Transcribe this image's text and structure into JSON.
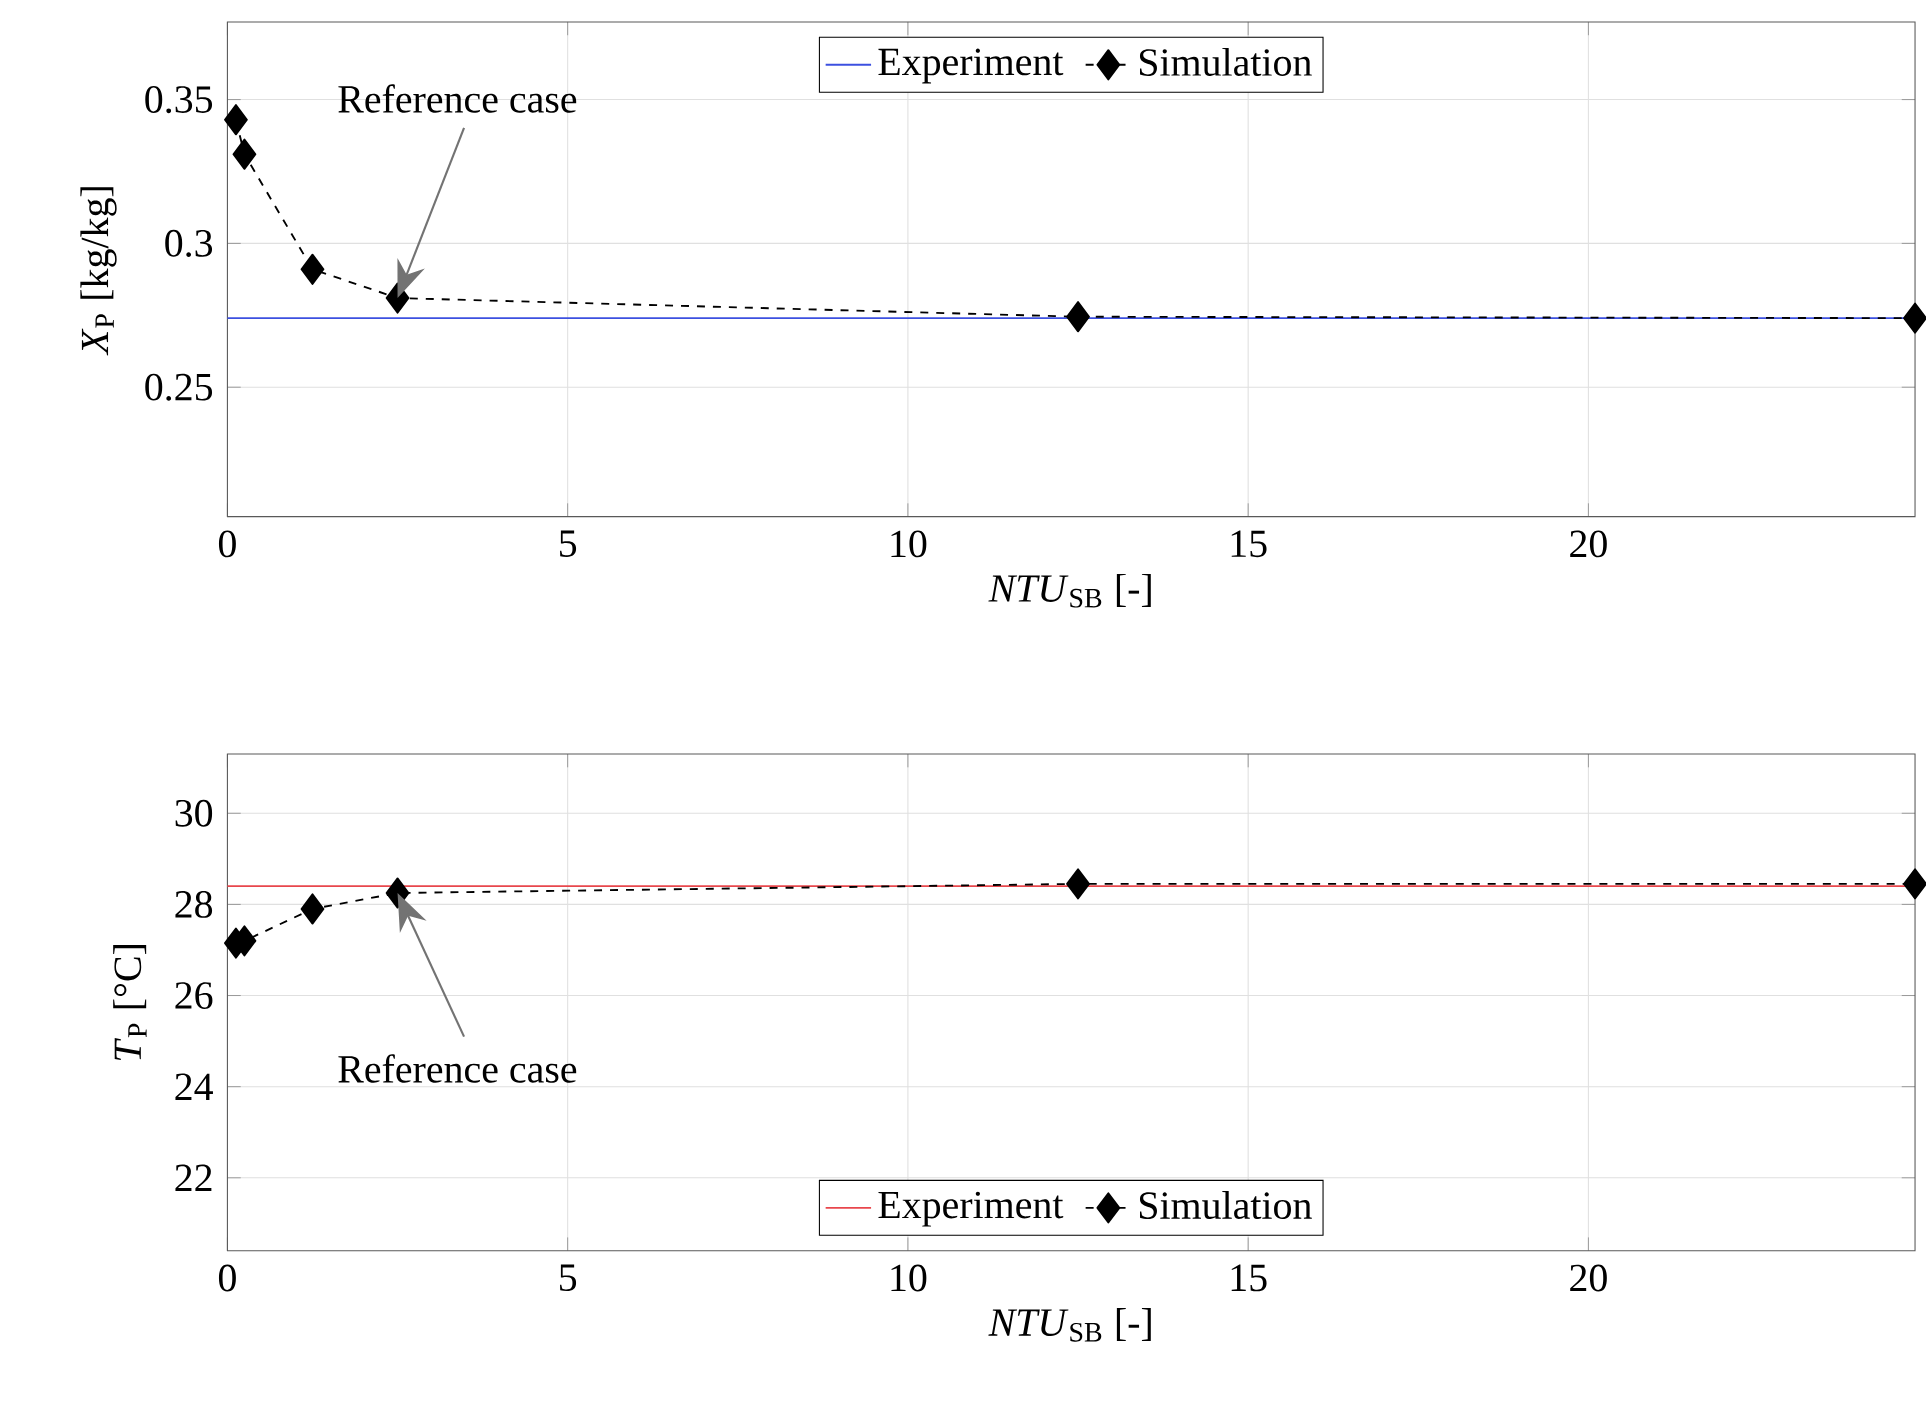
{
  "chart_data": [
    {
      "type": "line",
      "xlabel": "*NTU*$_{SB}$ [-]",
      "ylabel": "*X*$_{P}$ [kg/kg]",
      "xlim": [
        0,
        24.8
      ],
      "ylim": [
        0.205,
        0.377
      ],
      "xticks": [
        0,
        5,
        10,
        15,
        20
      ],
      "yticks": [
        0.25,
        0.3,
        0.35
      ],
      "grid": true,
      "legend": "top",
      "series": [
        {
          "name": "Experiment",
          "color": "#3c50e0",
          "x": [
            0,
            24.8
          ],
          "values": [
            0.274,
            0.274
          ],
          "line_style": "solid"
        },
        {
          "name": "Simulation",
          "color": "#000000",
          "x": [
            0.125,
            0.25,
            1.25,
            2.5,
            12.5,
            24.8
          ],
          "values": [
            0.343,
            0.331,
            0.291,
            0.281,
            0.2745,
            0.274
          ],
          "marker": "diamond",
          "line_style": "dashed"
        }
      ],
      "annotations": [
        "Reference case"
      ]
    },
    {
      "type": "line",
      "xlabel": "*NTU*$_{SB}$ [-]",
      "ylabel": "*T*$_{P}$ [°C]",
      "xlim": [
        0,
        24.8
      ],
      "ylim": [
        20.4,
        31.3
      ],
      "xticks": [
        0,
        5,
        10,
        15,
        20
      ],
      "yticks": [
        22,
        24,
        26,
        28,
        30
      ],
      "grid": true,
      "legend": "bottom",
      "series": [
        {
          "name": "Experiment",
          "color": "#e8474c",
          "x": [
            0,
            24.8
          ],
          "values": [
            28.4,
            28.4
          ],
          "line_style": "solid"
        },
        {
          "name": "Simulation",
          "color": "#000000",
          "x": [
            0.125,
            0.25,
            1.25,
            2.5,
            12.5,
            24.8
          ],
          "values": [
            27.15,
            27.2,
            27.9,
            28.25,
            28.45,
            28.45
          ],
          "marker": "diamond",
          "line_style": "dashed"
        }
      ],
      "annotations": [
        "Reference case"
      ]
    }
  ]
}
